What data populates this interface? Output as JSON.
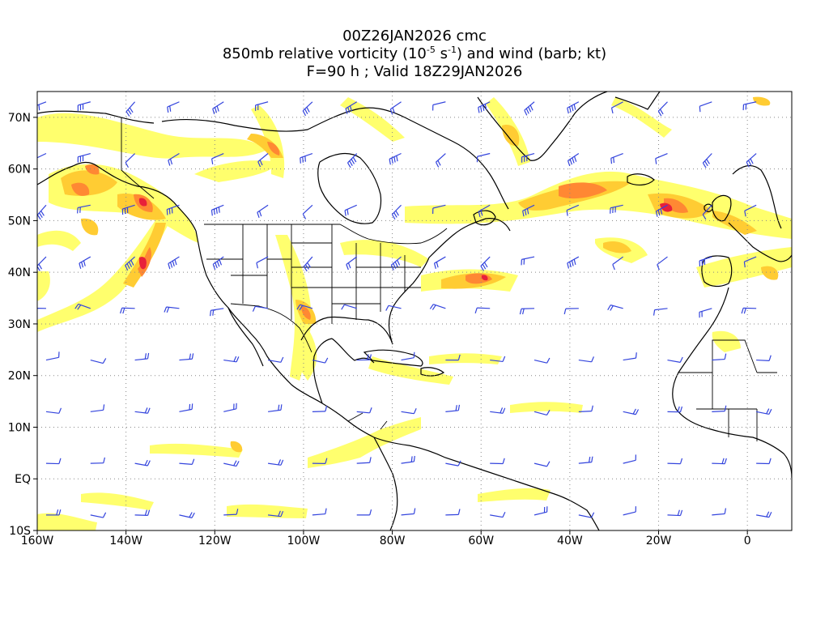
{
  "title": {
    "line1": "00Z26JAN2026 cmc",
    "line2_a": "850mb relative vorticity (10",
    "line2_sup1": "-5",
    "line2_b": " s",
    "line2_sup2": "-1",
    "line2_c": ") and wind (barb; kt)",
    "line3": "F=90 h ; Valid 18Z29JAN2026"
  },
  "map": {
    "lon_range": [
      -160,
      10
    ],
    "lat_range": [
      -10,
      75
    ],
    "x_ticks": [
      "160W",
      "140W",
      "120W",
      "100W",
      "80W",
      "60W",
      "40W",
      "20W",
      "0"
    ],
    "x_tick_values": [
      -160,
      -140,
      -120,
      -100,
      -80,
      -60,
      -40,
      -20,
      0
    ],
    "y_ticks": [
      "10S",
      "EQ",
      "10N",
      "20N",
      "30N",
      "40N",
      "50N",
      "60N",
      "70N"
    ],
    "y_tick_values": [
      -10,
      0,
      10,
      20,
      30,
      40,
      50,
      60,
      70
    ],
    "gridlines": "dotted",
    "colors": {
      "vort_low": "#ffff66",
      "vort_mid": "#ffcc33",
      "vort_high": "#ff8833",
      "vort_max": "#e8203a",
      "barb": "#3344dd",
      "coast": "#000000"
    }
  }
}
